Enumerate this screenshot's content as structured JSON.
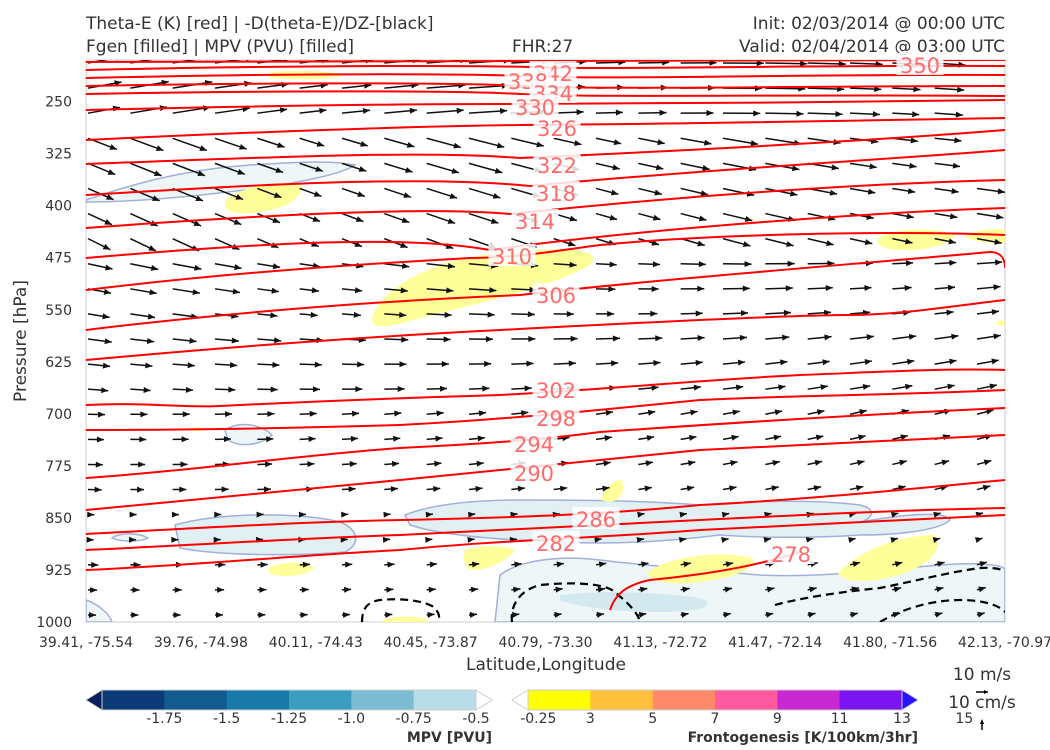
{
  "titles": {
    "left_line1": "Theta-E (K) [red] | -D(theta-E)/DZ-[black]",
    "left_line2": "Fgen [filled] | MPV (PVU) [filled]",
    "center": "FHR:27",
    "right_line1": "Init: 02/03/2014 @ 00:00 UTC",
    "right_line2": "Valid: 02/04/2014 @ 03:00 UTC"
  },
  "chart_data": {
    "type": "cross-section",
    "xlabel": "Latitude,Longitude",
    "ylabel": "Pressure [hPa]",
    "y_axis": {
      "ticks": [
        250,
        325,
        400,
        475,
        550,
        625,
        700,
        775,
        850,
        925,
        1000
      ],
      "range": [
        1000,
        190
      ],
      "inverted": true
    },
    "x_ticks": [
      "39.41, -75.54",
      "39.76, -74.98",
      "40.11, -74.43",
      "40.45, -73.87",
      "40.79, -73.30",
      "41.13, -72.72",
      "41.47, -72.14",
      "41.80, -71.56",
      "42.13, -70.97"
    ],
    "theta_e_contours": {
      "color": "#ff0000",
      "labels": [
        "350",
        "342",
        "338",
        "334",
        "330",
        "326",
        "322",
        "318",
        "314",
        "310",
        "306",
        "302",
        "298",
        "294",
        "290",
        "286",
        "282",
        "278"
      ]
    },
    "ref_vectors": [
      "10 m/s",
      "10 cm/s"
    ],
    "colorbars": [
      {
        "title": "MPV [PVU]",
        "ticks": [
          "-1.75",
          "-1.5",
          "-1.25",
          "-1.0",
          "-0.75",
          "-0.5",
          "-0.25"
        ],
        "colors": [
          "#0a1f5c",
          "#0d3a78",
          "#125b8f",
          "#1a79a8",
          "#3c9dc0",
          "#7bbcd3",
          "#b9dde8",
          "#ffffff"
        ]
      },
      {
        "title": "Frontogenesis [K/100km/3hr]",
        "ticks": [
          "3",
          "5",
          "7",
          "9",
          "11",
          "13",
          "15"
        ],
        "colors": [
          "#ffffff",
          "#ffff00",
          "#ffc03c",
          "#ff8a6a",
          "#ff5aa0",
          "#c828d0",
          "#7a14f0",
          "#2814ff"
        ]
      }
    ]
  }
}
